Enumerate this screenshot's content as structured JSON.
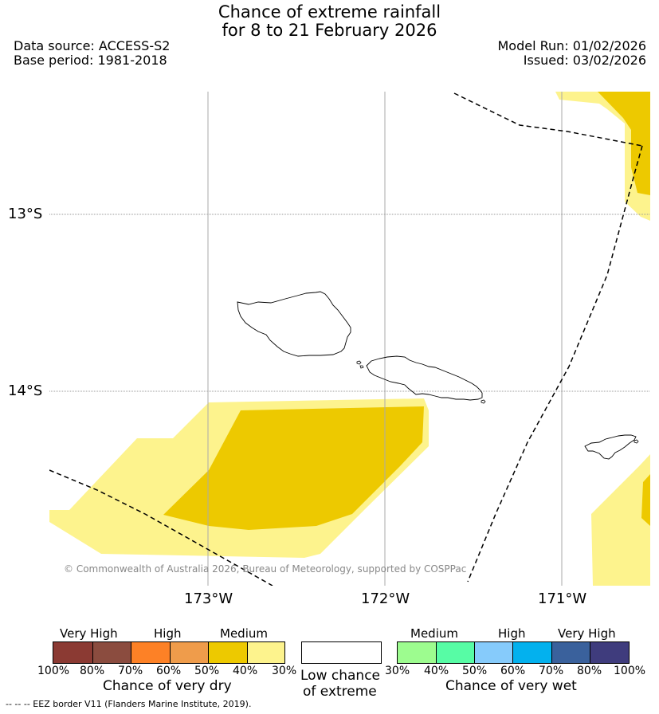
{
  "title": {
    "line1": "Chance of extreme rainfall",
    "line2": "for 8 to 21 February 2026"
  },
  "header": {
    "data_source": "Data source: ACCESS-S2",
    "base_period": "Base period: 1981-2018",
    "model_run": "Model Run: 01/02/2026",
    "issued": "Issued: 03/02/2026"
  },
  "map": {
    "lat_labels": [
      "13°S",
      "14°S"
    ],
    "lon_labels": [
      "173°W",
      "172°W",
      "171°W"
    ],
    "copyright": "© Commonwealth of Australia 2026, Bureau of Meteorology, supported by COSPPac",
    "colors": {
      "medium_dry_light": "#fdf38d",
      "medium_dry_dark": "#edc900",
      "grid": "#999999",
      "coast": "#000000"
    }
  },
  "legend": {
    "dry": {
      "categories": [
        "Very High",
        "High",
        "Medium"
      ],
      "ticks": [
        "100%",
        "80%",
        "70%",
        "60%",
        "50%",
        "40%",
        "30%"
      ],
      "colors": [
        "#8b3a33",
        "#8b4c3f",
        "#fd8126",
        "#ef9c4b",
        "#edc900",
        "#fdf38d"
      ],
      "title": "Chance of very dry"
    },
    "low": {
      "line1": "Low chance",
      "line2": "of extreme",
      "color": "#ffffff"
    },
    "wet": {
      "categories": [
        "Medium",
        "High",
        "Very High"
      ],
      "ticks": [
        "30%",
        "40%",
        "50%",
        "60%",
        "70%",
        "80%",
        "100%"
      ],
      "colors": [
        "#9dfc8f",
        "#57fca5",
        "#86cbfb",
        "#03b1ee",
        "#3a619c",
        "#3f3c7d"
      ],
      "title": "Chance of very wet"
    }
  },
  "footer": {
    "eez_note": "--  --  -- EEZ border V11 (Flanders Marine Institute, 2019)."
  }
}
